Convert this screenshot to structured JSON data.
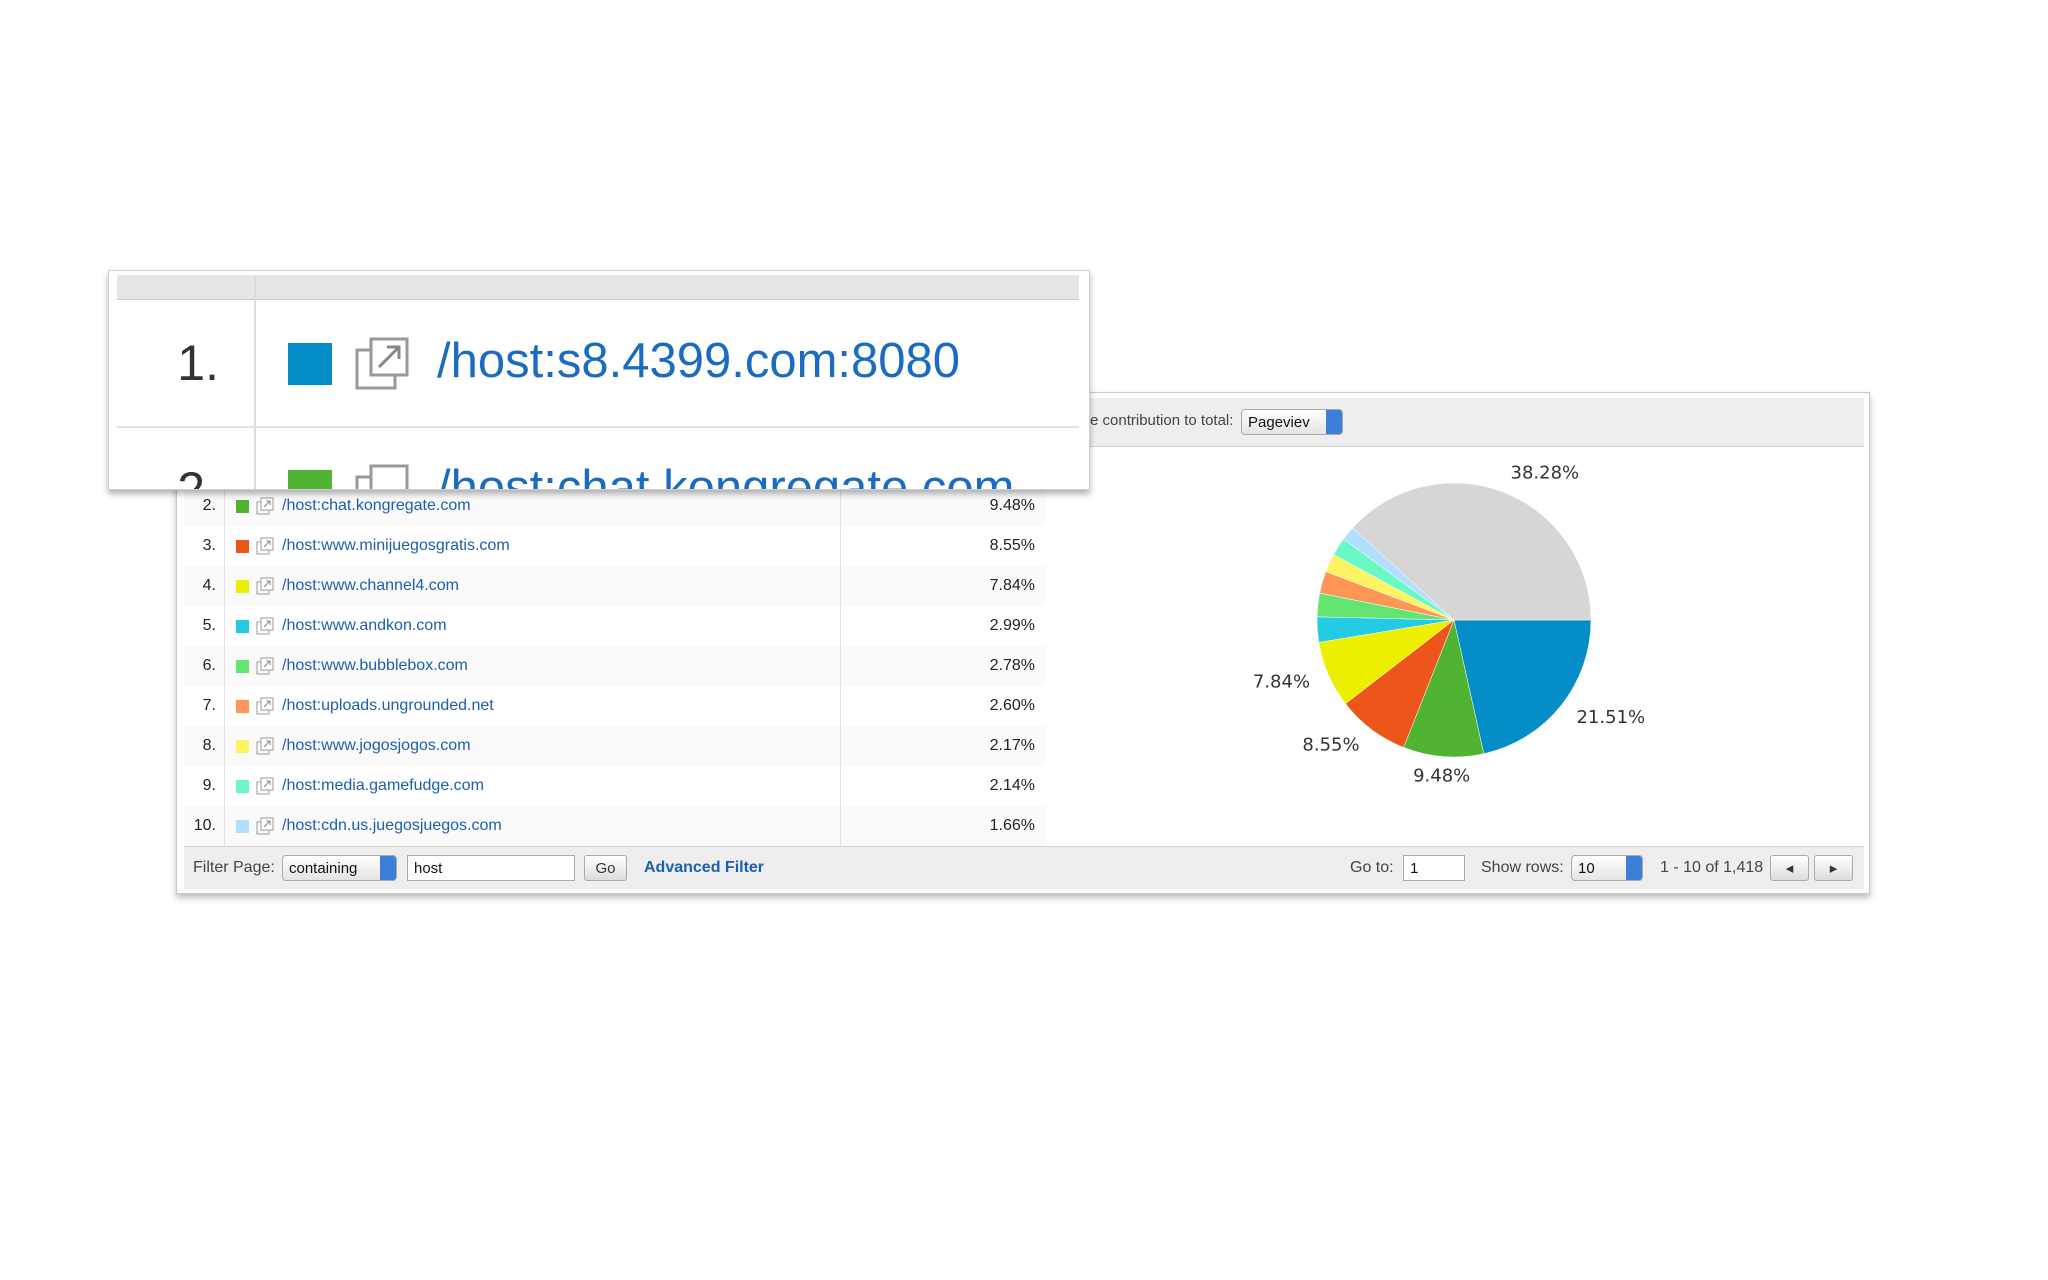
{
  "zoom": {
    "rank": "1.",
    "host": "/host:s8.4399.com:8080"
  },
  "header": {
    "label": "e contribution to total:",
    "metric": "Pageviev"
  },
  "table": {
    "rows": [
      [
        "2.",
        "/host:chat.kongregate.com",
        "9.48%"
      ],
      [
        "3.",
        "/host:www.minijuegosgratis.com",
        "8.55%"
      ],
      [
        "4.",
        "/host:www.channel4.com",
        "7.84%"
      ],
      [
        "5.",
        "/host:www.andkon.com",
        "2.99%"
      ],
      [
        "6.",
        "/host:www.bubblebox.com",
        "2.78%"
      ],
      [
        "7.",
        "/host:uploads.ungrounded.net",
        "2.60%"
      ],
      [
        "8.",
        "/host:www.jogosjogos.com",
        "2.17%"
      ],
      [
        "9.",
        "/host:media.gamefudge.com",
        "2.14%"
      ],
      [
        "10.",
        "/host:cdn.us.juegosjuegos.com",
        "1.66%"
      ]
    ]
  },
  "footer": {
    "filter_label": "Filter Page:",
    "match": "containing",
    "query": "host",
    "go": "Go",
    "advanced": "Advanced Filter",
    "goto_label": "Go to:",
    "goto_value": "1",
    "rows_label": "Show rows:",
    "rows_value": "10",
    "range": "1 - 10 of 1,418"
  },
  "chart_data": {
    "type": "pie",
    "values": [
      21.51,
      9.48,
      8.55,
      7.84,
      2.99,
      2.78,
      2.6,
      2.17,
      2.14,
      1.66,
      38.28
    ],
    "value_labels": [
      "21.51%",
      "9.48%",
      "8.55%",
      "7.84%",
      null,
      null,
      null,
      null,
      null,
      null,
      "38.28%"
    ],
    "colors": [
      "#058dc7",
      "#50b432",
      "#ed561b",
      "#edef00",
      "#24cbe5",
      "#64e572",
      "#ff9655",
      "#fff263",
      "#6af9c4",
      "#b2deff",
      "#d6d6d6"
    ]
  }
}
